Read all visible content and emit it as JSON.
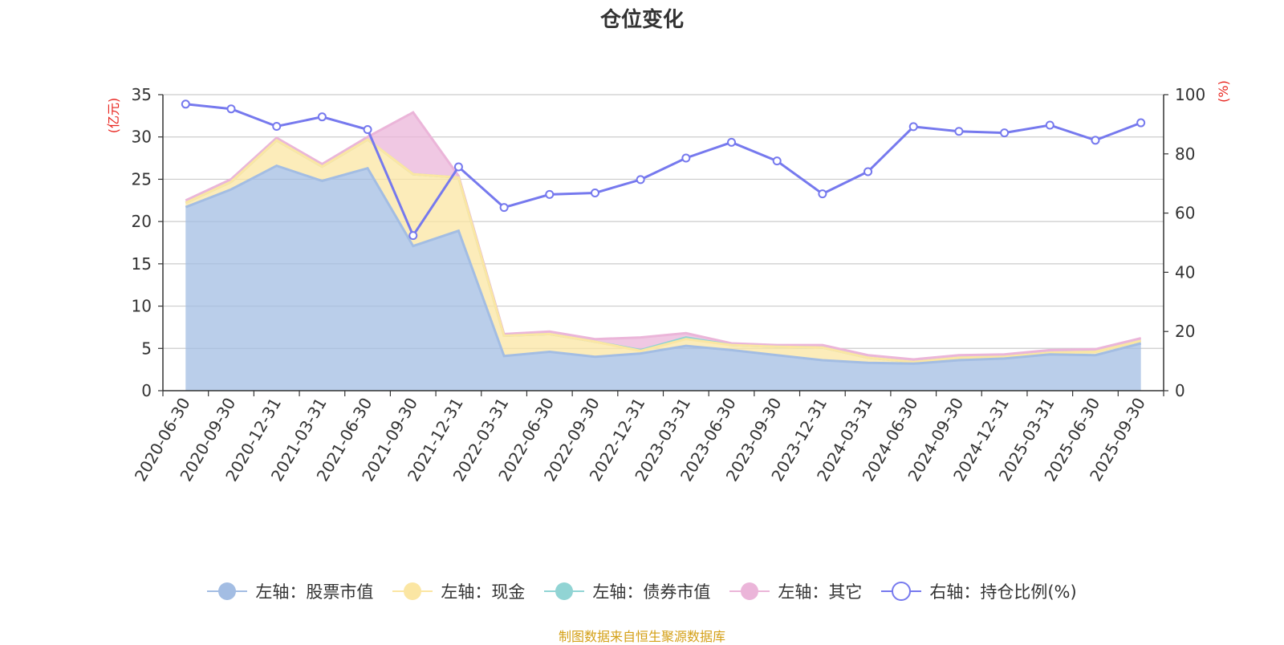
{
  "title": "仓位变化",
  "source_note": "制图数据来自恒生聚源数据库",
  "chart_data": {
    "type": "area",
    "title": "仓位变化",
    "categories": [
      "2020-06-30",
      "2020-09-30",
      "2020-12-31",
      "2021-03-31",
      "2021-06-30",
      "2021-09-30",
      "2021-12-31",
      "2022-03-31",
      "2022-06-30",
      "2022-09-30",
      "2022-12-31",
      "2023-03-31",
      "2023-06-30",
      "2023-09-30",
      "2023-12-31",
      "2024-03-31",
      "2024-06-30",
      "2024-09-30",
      "2024-12-31",
      "2025-03-31",
      "2025-06-30",
      "2025-09-30"
    ],
    "left_axis": {
      "label": "(亿元)",
      "ylim": [
        0,
        35
      ],
      "ticks": [
        0,
        5,
        10,
        15,
        20,
        25,
        30,
        35
      ]
    },
    "right_axis": {
      "label": "(%)",
      "ylim": [
        0,
        100
      ],
      "ticks": [
        0,
        20,
        40,
        60,
        80,
        100
      ]
    },
    "series": [
      {
        "name": "左轴：股票市值",
        "axis": "left",
        "kind": "stacked-area",
        "color": "#a3bde3",
        "values": [
          21.7,
          23.8,
          26.6,
          24.8,
          26.3,
          17.1,
          18.9,
          4.1,
          4.6,
          4.0,
          4.4,
          5.3,
          4.8,
          4.2,
          3.6,
          3.3,
          3.2,
          3.6,
          3.8,
          4.3,
          4.2,
          5.6
        ]
      },
      {
        "name": "左轴：现金",
        "axis": "left",
        "kind": "stacked-area",
        "color": "#fbe6a3",
        "values": [
          0.5,
          0.9,
          3.0,
          1.7,
          3.4,
          8.5,
          6.3,
          2.4,
          2.1,
          1.8,
          0.3,
          0.8,
          0.6,
          1.0,
          1.5,
          0.6,
          0.2,
          0.3,
          0.2,
          0.2,
          0.4,
          0.3
        ]
      },
      {
        "name": "左轴：债券市值",
        "axis": "left",
        "kind": "stacked-area",
        "color": "#91d4d4",
        "values": [
          0,
          0,
          0,
          0,
          0,
          0,
          0,
          0,
          0,
          0,
          0.1,
          0.2,
          0,
          0,
          0,
          0,
          0,
          0,
          0,
          0,
          0,
          0
        ]
      },
      {
        "name": "左轴：其它",
        "axis": "left",
        "kind": "stacked-area",
        "color": "#ebb5d9",
        "values": [
          0.3,
          0.3,
          0.3,
          0.3,
          0.3,
          7.3,
          0.2,
          0.2,
          0.3,
          0.3,
          1.5,
          0.5,
          0.2,
          0.2,
          0.3,
          0.3,
          0.3,
          0.3,
          0.3,
          0.3,
          0.3,
          0.3
        ]
      },
      {
        "name": "右轴：持仓比例(%)",
        "axis": "right",
        "kind": "line",
        "color": "#7679ee",
        "values": [
          96.8,
          95.2,
          89.3,
          92.5,
          88.2,
          52.4,
          75.6,
          61.9,
          66.3,
          66.8,
          71.3,
          78.6,
          83.9,
          77.6,
          66.5,
          74.0,
          89.2,
          87.6,
          87.1,
          89.7,
          84.6,
          90.5
        ]
      }
    ]
  }
}
